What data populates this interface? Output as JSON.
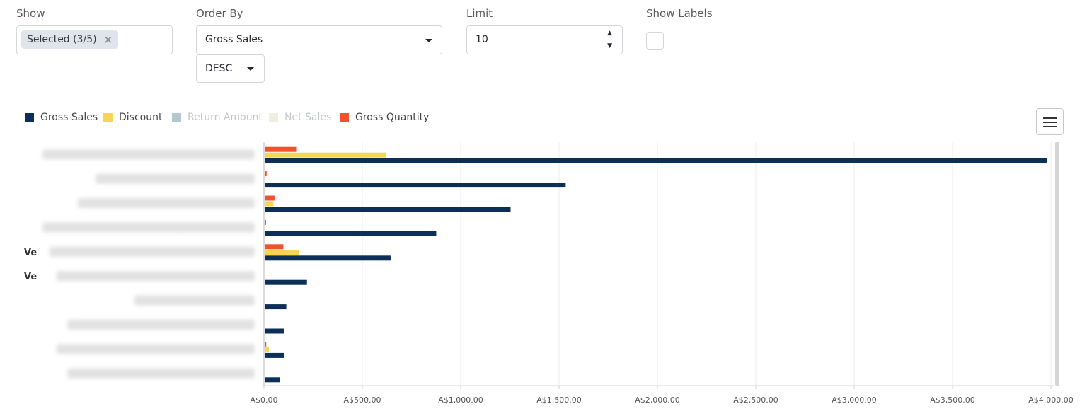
{
  "controls": {
    "show": {
      "label": "Show",
      "tag": "Selected (3/5)",
      "remove": "×"
    },
    "order_by": {
      "label": "Order By",
      "value": "Gross Sales",
      "direction": "DESC"
    },
    "limit": {
      "label": "Limit",
      "value": "10"
    },
    "show_labels": {
      "label": "Show Labels",
      "checked": false
    }
  },
  "legend": [
    {
      "name": "Gross Sales",
      "color": "#0b2f57",
      "active": true
    },
    {
      "name": "Discount",
      "color": "#f7d451",
      "active": true
    },
    {
      "name": "Return Amount",
      "color": "#b3c7d1",
      "active": false
    },
    {
      "name": "Net Sales",
      "color": "#f3efe0",
      "active": false
    },
    {
      "name": "Gross Quantity",
      "color": "#f0532c",
      "active": true
    }
  ],
  "chart_data": {
    "type": "bar",
    "orientation": "horizontal",
    "xlim": [
      0,
      4000
    ],
    "x_ticks": [
      "A$0.00",
      "A$500.00",
      "A$1,000.00",
      "A$1,500.00",
      "A$2,000.00",
      "A$2,500.00",
      "A$3,000.00",
      "A$3,500.00",
      "A$4,000.00"
    ],
    "categories_visible_fragments": [
      "",
      "",
      "",
      "",
      "Ve",
      "Ve",
      "",
      "",
      "",
      ""
    ],
    "series": [
      {
        "name": "Gross Quantity",
        "color": "#f0532c",
        "values": [
          160,
          10,
          50,
          5,
          95,
          0,
          0,
          0,
          8,
          0
        ]
      },
      {
        "name": "Discount",
        "color": "#f7d451",
        "values": [
          615,
          0,
          45,
          0,
          175,
          0,
          0,
          0,
          22,
          0
        ]
      },
      {
        "name": "Gross Sales",
        "color": "#0b2f57",
        "values": [
          3975,
          1530,
          1250,
          872,
          640,
          215,
          110,
          97,
          97,
          77
        ]
      }
    ]
  }
}
